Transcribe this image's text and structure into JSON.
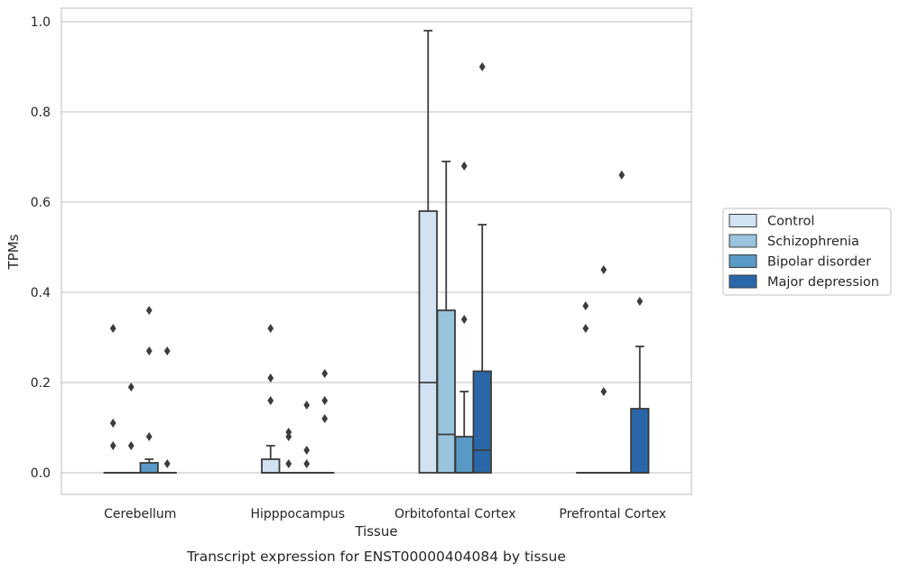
{
  "chart_data": {
    "type": "box",
    "caption": "Transcript expression for ENST00000404084 by tissue",
    "xlabel": "Tissue",
    "ylabel": "TPMs",
    "ylim": [
      -0.045,
      1.03
    ],
    "yticks": [
      "0.0",
      "0.2",
      "0.4",
      "0.6",
      "0.8",
      "1.0"
    ],
    "grid": true,
    "legend_position": "right",
    "categories": [
      "Cerebellum",
      "Hipppocampus",
      "Orbitofontal Cortex",
      "Prefrontal Cortex"
    ],
    "series": [
      {
        "name": "Control",
        "color": "#d1e2f2",
        "boxes": [
          {
            "q1": 0,
            "median": 0,
            "q3": 0,
            "whisker_low": 0,
            "whisker_high": 0,
            "outliers": [
              0.32,
              0.11,
              0.06
            ]
          },
          {
            "q1": 0,
            "median": 0,
            "q3": 0.03,
            "whisker_low": 0,
            "whisker_high": 0.06,
            "outliers": [
              0.32,
              0.21,
              0.16
            ]
          },
          {
            "q1": 0,
            "median": 0.2,
            "q3": 0.58,
            "whisker_low": 0,
            "whisker_high": 0.98,
            "outliers": []
          },
          {
            "q1": 0,
            "median": 0,
            "q3": 0,
            "whisker_low": 0,
            "whisker_high": 0,
            "outliers": [
              0.37,
              0.32
            ]
          }
        ]
      },
      {
        "name": "Schizophrenia",
        "color": "#9ac4dd",
        "boxes": [
          {
            "q1": 0,
            "median": 0,
            "q3": 0,
            "whisker_low": 0,
            "whisker_high": 0,
            "outliers": [
              0.19,
              0.06
            ]
          },
          {
            "q1": 0,
            "median": 0,
            "q3": 0,
            "whisker_low": 0,
            "whisker_high": 0,
            "outliers": [
              0.09,
              0.08,
              0.02
            ]
          },
          {
            "q1": 0,
            "median": 0.085,
            "q3": 0.36,
            "whisker_low": 0,
            "whisker_high": 0.69,
            "outliers": []
          },
          {
            "q1": 0,
            "median": 0,
            "q3": 0,
            "whisker_low": 0,
            "whisker_high": 0,
            "outliers": [
              0.45,
              0.18
            ]
          }
        ]
      },
      {
        "name": "Bipolar disorder",
        "color": "#5899c5",
        "boxes": [
          {
            "q1": 0,
            "median": 0,
            "q3": 0.022,
            "whisker_low": 0,
            "whisker_high": 0.03,
            "outliers": [
              0.36,
              0.27,
              0.08
            ]
          },
          {
            "q1": 0,
            "median": 0,
            "q3": 0,
            "whisker_low": 0,
            "whisker_high": 0,
            "outliers": [
              0.15,
              0.05,
              0.02
            ]
          },
          {
            "q1": 0,
            "median": 0,
            "q3": 0.08,
            "whisker_low": 0,
            "whisker_high": 0.18,
            "outliers": [
              0.68,
              0.34
            ]
          },
          {
            "q1": 0,
            "median": 0,
            "q3": 0,
            "whisker_low": 0,
            "whisker_high": 0,
            "outliers": [
              0.66
            ]
          }
        ]
      },
      {
        "name": "Major depression",
        "color": "#2967a8",
        "boxes": [
          {
            "q1": 0,
            "median": 0,
            "q3": 0,
            "whisker_low": 0,
            "whisker_high": 0,
            "outliers": [
              0.27,
              0.02
            ]
          },
          {
            "q1": 0,
            "median": 0,
            "q3": 0,
            "whisker_low": 0,
            "whisker_high": 0,
            "outliers": [
              0.22,
              0.16,
              0.12
            ]
          },
          {
            "q1": 0,
            "median": 0.05,
            "q3": 0.225,
            "whisker_low": 0,
            "whisker_high": 0.55,
            "outliers": [
              0.9
            ]
          },
          {
            "q1": 0,
            "median": 0,
            "q3": 0.142,
            "whisker_low": 0,
            "whisker_high": 0.28,
            "outliers": [
              0.38
            ]
          }
        ]
      }
    ]
  }
}
